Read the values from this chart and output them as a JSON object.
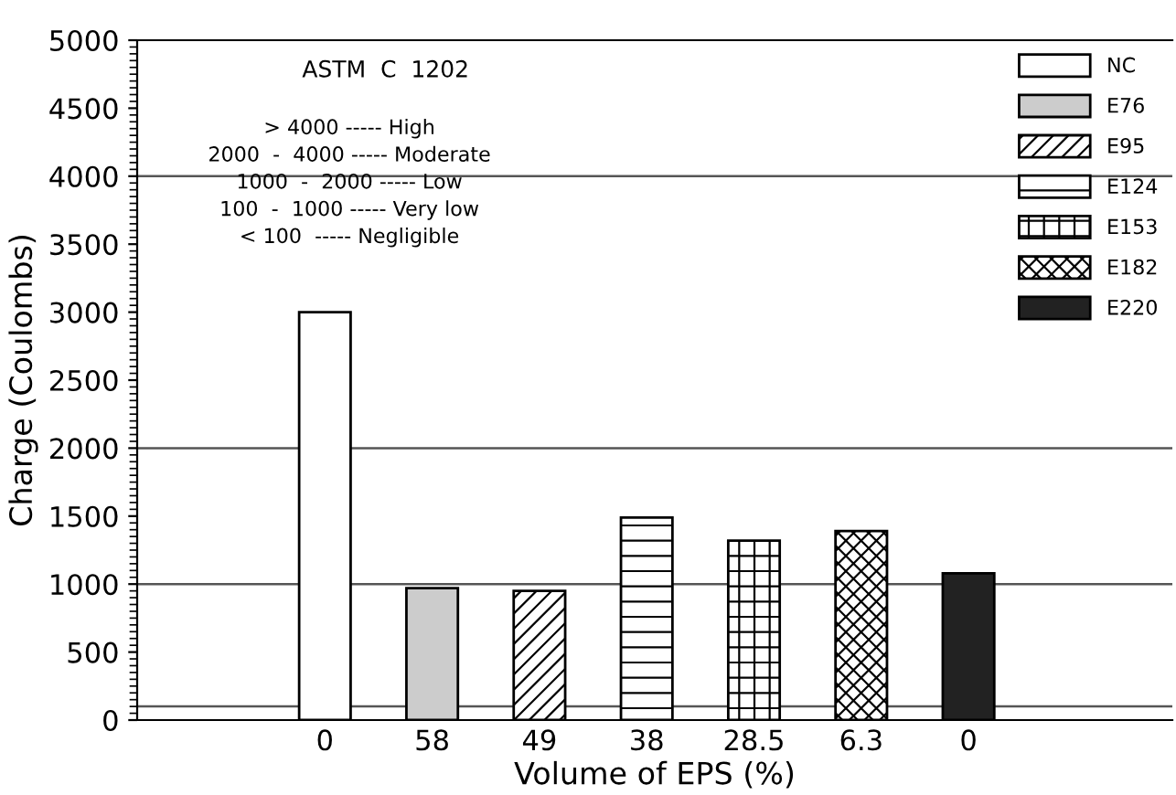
{
  "chart_data": {
    "type": "bar",
    "xlabel": "Volume of EPS (%)",
    "ylabel": "Charge (Coulombs)",
    "categories": [
      "0",
      "58",
      "49",
      "38",
      "28.5",
      "6.3",
      "0"
    ],
    "series": [
      {
        "name": "NC",
        "color": "#ffffff",
        "values": [
          3000,
          null,
          null,
          null,
          null,
          null,
          null
        ]
      },
      {
        "name": "E76",
        "color": "#cccccc",
        "values": [
          null,
          970,
          null,
          null,
          null,
          null,
          null
        ]
      },
      {
        "name": "E95",
        "color": "#000000",
        "values": [
          null,
          null,
          950,
          null,
          null,
          null,
          null
        ]
      },
      {
        "name": "E124",
        "color": "#000000",
        "values": [
          null,
          null,
          null,
          1490,
          null,
          null,
          null
        ]
      },
      {
        "name": "E153",
        "color": "#000000",
        "values": [
          null,
          null,
          null,
          null,
          1320,
          null,
          null
        ]
      },
      {
        "name": "E182",
        "color": "#000000",
        "values": [
          null,
          null,
          null,
          null,
          null,
          1390,
          null
        ]
      },
      {
        "name": "E220",
        "color": "#222222",
        "values": [
          null,
          null,
          null,
          null,
          null,
          null,
          1080
        ]
      }
    ],
    "ylim": [
      0,
      5000
    ],
    "yticks": [
      0,
      500,
      1000,
      1500,
      2000,
      2500,
      3000,
      3500,
      4000,
      4500,
      5000
    ],
    "ref_lines": [
      {
        "axis": "y",
        "value": 100,
        "color": "#555555"
      },
      {
        "axis": "y",
        "value": 1000,
        "color": "#555555"
      },
      {
        "axis": "y",
        "value": 2000,
        "color": "#555555"
      },
      {
        "axis": "y",
        "value": 4000,
        "color": "#555555"
      }
    ],
    "annotations": [
      "ASTM  C  1202",
      "> 4000 ----- High",
      "2000  -  4000 ----- Moderate",
      "1000  -  2000 ----- Low",
      "100  -  1000 ----- Very low",
      "< 100  ----- Negligible"
    ],
    "legend": "top right",
    "grid": false
  }
}
